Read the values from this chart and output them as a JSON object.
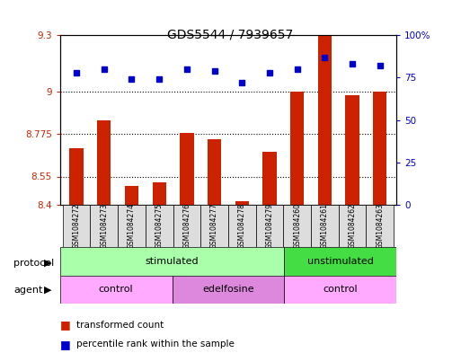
{
  "title": "GDS5544 / 7939657",
  "samples": [
    "GSM1084272",
    "GSM1084273",
    "GSM1084274",
    "GSM1084275",
    "GSM1084276",
    "GSM1084277",
    "GSM1084278",
    "GSM1084279",
    "GSM1084260",
    "GSM1084261",
    "GSM1084262",
    "GSM1084263"
  ],
  "bar_values": [
    8.7,
    8.85,
    8.5,
    8.52,
    8.78,
    8.75,
    8.42,
    8.68,
    9.0,
    9.3,
    8.98,
    9.0
  ],
  "dot_values": [
    78,
    80,
    74,
    74,
    80,
    79,
    72,
    78,
    80,
    87,
    83,
    82
  ],
  "ylim_left": [
    8.4,
    9.3
  ],
  "ylim_right": [
    0,
    100
  ],
  "yticks_left": [
    8.4,
    8.55,
    8.775,
    9.0,
    9.3
  ],
  "yticks_right": [
    0,
    25,
    50,
    75,
    100
  ],
  "ytick_labels_left": [
    "8.4",
    "8.55",
    "8.775",
    "9",
    "9.3"
  ],
  "ytick_labels_right": [
    "0",
    "25",
    "50",
    "75",
    "100%"
  ],
  "hlines": [
    9.0,
    8.775,
    8.55
  ],
  "bar_color": "#CC2200",
  "dot_color": "#0000CC",
  "bar_width": 0.5,
  "protocol_groups": [
    {
      "label": "stimulated",
      "start": 0,
      "end": 8,
      "color": "#AAFFAA"
    },
    {
      "label": "unstimulated",
      "start": 8,
      "end": 12,
      "color": "#44DD44"
    }
  ],
  "agent_groups": [
    {
      "label": "control",
      "start": 0,
      "end": 4,
      "color": "#FFAAFF"
    },
    {
      "label": "edelfosine",
      "start": 4,
      "end": 8,
      "color": "#DD88DD"
    },
    {
      "label": "control",
      "start": 8,
      "end": 12,
      "color": "#FFAAFF"
    }
  ],
  "legend_items": [
    {
      "label": "transformed count",
      "color": "#CC2200",
      "marker": "s"
    },
    {
      "label": "percentile rank within the sample",
      "color": "#0000CC",
      "marker": "s"
    }
  ],
  "protocol_label": "protocol",
  "agent_label": "agent",
  "xlabel_color": "#000000",
  "left_axis_color": "#CC2200",
  "right_axis_color": "#0000CC",
  "background_color": "#FFFFFF",
  "plot_bg_color": "#FFFFFF",
  "grid_color": "#000000"
}
